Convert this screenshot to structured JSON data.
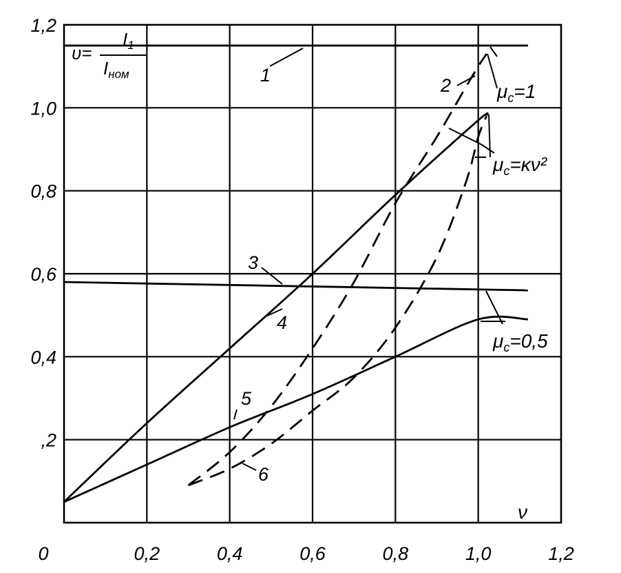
{
  "chart_data": {
    "type": "line",
    "title": "",
    "xlabel": "ν",
    "ylabel": {
      "lhs": "υ",
      "numerator": "I",
      "numerator_sub": "1",
      "denominator": "I",
      "denominator_sub": "ном"
    },
    "xlim": [
      0,
      1.2
    ],
    "ylim": [
      0,
      1.2
    ],
    "grid": true,
    "x_ticks": [
      "0",
      "0,2",
      "0,4",
      "0,6",
      "0,8",
      "1,0",
      "1,2"
    ],
    "y_ticks": [
      ",2",
      "0,4",
      "0,6",
      "0,8",
      "1,0",
      "1,2"
    ],
    "series": [
      {
        "name": "1",
        "style": "solid",
        "x": [
          0.0,
          1.12
        ],
        "y": [
          1.15,
          1.15
        ]
      },
      {
        "name": "2",
        "style": "dashed",
        "x": [
          0.3,
          0.4,
          0.5,
          0.6,
          0.7,
          0.8,
          0.9,
          0.97,
          1.0,
          1.02
        ],
        "y": [
          0.09,
          0.17,
          0.28,
          0.42,
          0.58,
          0.77,
          0.93,
          1.05,
          1.1,
          1.13
        ]
      },
      {
        "name": "3",
        "style": "solid",
        "x": [
          0.0,
          1.12
        ],
        "y": [
          0.58,
          0.56
        ]
      },
      {
        "name": "4",
        "style": "solid",
        "x": [
          0.0,
          0.2,
          0.4,
          0.6,
          0.8,
          1.0,
          1.02
        ],
        "y": [
          0.05,
          0.24,
          0.42,
          0.6,
          0.79,
          0.97,
          0.98
        ]
      },
      {
        "name": "5",
        "style": "solid",
        "x": [
          0.0,
          0.2,
          0.4,
          0.6,
          0.8,
          1.0,
          1.12
        ],
        "y": [
          0.05,
          0.14,
          0.23,
          0.31,
          0.4,
          0.49,
          0.49
        ]
      },
      {
        "name": "6",
        "style": "dashed",
        "x": [
          0.3,
          0.4,
          0.5,
          0.6,
          0.7,
          0.8,
          0.9,
          0.97,
          1.0,
          1.02
        ],
        "y": [
          0.09,
          0.13,
          0.19,
          0.27,
          0.35,
          0.47,
          0.64,
          0.82,
          0.93,
          0.98
        ]
      }
    ],
    "annotations": {
      "mu1": {
        "text": "μ",
        "sub": "c",
        "rest": "=1"
      },
      "muk": {
        "text": "μ",
        "sub": "c",
        "rest": "=κν²"
      },
      "mu05": {
        "text": "μ",
        "sub": "c",
        "rest": "=0,5"
      }
    }
  }
}
